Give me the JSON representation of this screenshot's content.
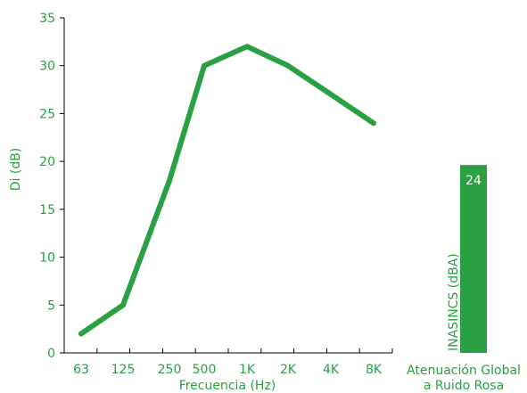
{
  "colors": {
    "accent": "#2aa043",
    "axis": "#000000",
    "bar_label": "#ffffff"
  },
  "chart_data": [
    {
      "type": "line",
      "title": "",
      "xlabel": "Frecuencia (Hz)",
      "ylabel": "Di (dB)",
      "categories": [
        "63",
        "125",
        "250",
        "500",
        "1K",
        "2K",
        "4K",
        "8K"
      ],
      "series": [
        {
          "values": [
            2,
            5,
            18,
            30,
            32,
            30,
            27,
            24
          ]
        }
      ],
      "ylim": [
        0,
        35
      ],
      "yticks": [
        0,
        5,
        10,
        15,
        20,
        25,
        30,
        35
      ],
      "grid": false,
      "legend": "none"
    },
    {
      "type": "bar",
      "categories": [
        "Atenuación Global a Ruido Rosa"
      ],
      "category_lines": [
        "Atenuación Global",
        "a Ruido Rosa"
      ],
      "series": [
        {
          "name": "INASINCS (dBA)",
          "values": [
            24
          ]
        }
      ],
      "data_labels": [
        "24"
      ]
    }
  ]
}
